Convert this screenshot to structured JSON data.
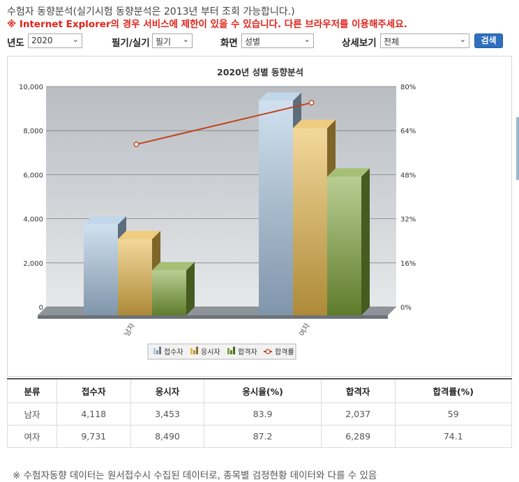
{
  "header": {
    "title": "수험자 동향분석(실기시험 동향분석은 2013년 부터 조회 가능합니다.)",
    "warning": "※ Internet Explorer의 경우 서비스에 제한이 있을 수 있습니다. 다른 브라우저를 이용해주세요."
  },
  "filters": {
    "year_label": "년도",
    "year_value": "2020",
    "exam_label": "필기/실기",
    "exam_value": "필기",
    "screen_label": "화면",
    "screen_value": "성별",
    "detail_label": "상세보기",
    "detail_value": "전체",
    "search_label": "검색"
  },
  "chart_data": {
    "type": "bar",
    "title": "2020년 성별 동향분석",
    "categories": [
      "남자",
      "여자"
    ],
    "series": [
      {
        "name": "접수자",
        "values": [
          4118,
          9731
        ],
        "color": "#a9c6e2"
      },
      {
        "name": "응시자",
        "values": [
          3453,
          8490
        ],
        "color": "#e8b84a"
      },
      {
        "name": "합격자",
        "values": [
          2037,
          6289
        ],
        "color": "#7fa53a"
      }
    ],
    "line_series": {
      "name": "합격률",
      "values": [
        59,
        74.1
      ],
      "color": "#c0441c",
      "axis": "right"
    },
    "y_left": {
      "min": 0,
      "max": 10000,
      "ticks": [
        "0",
        "2,000",
        "4,000",
        "6,000",
        "8,000",
        "10,000"
      ]
    },
    "y_right": {
      "min": 0,
      "max": 80,
      "ticks": [
        "0%",
        "16%",
        "32%",
        "48%",
        "64%",
        "80%"
      ]
    },
    "grid": true,
    "legend": "bottom-center"
  },
  "table": {
    "headers": [
      "분류",
      "접수자",
      "응시자",
      "응시율(%)",
      "합격자",
      "합격률(%)"
    ],
    "rows": [
      [
        "남자",
        "4,118",
        "3,453",
        "83.9",
        "2,037",
        "59"
      ],
      [
        "여자",
        "9,731",
        "8,490",
        "87.2",
        "6,289",
        "74.1"
      ]
    ]
  },
  "footer_note": "※ 수험자동향 데이터는 원서접수시 수집된 데이터로, 종목별 검정현황 데이터와 다를 수 있음"
}
